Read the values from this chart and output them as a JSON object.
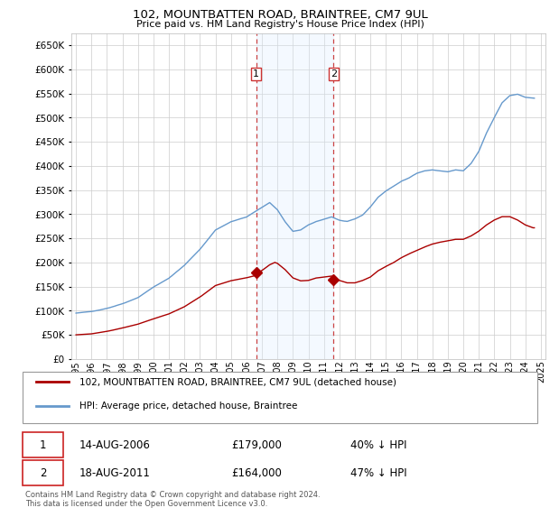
{
  "title": "102, MOUNTBATTEN ROAD, BRAINTREE, CM7 9UL",
  "subtitle": "Price paid vs. HM Land Registry's House Price Index (HPI)",
  "footnote": "Contains HM Land Registry data © Crown copyright and database right 2024.\nThis data is licensed under the Open Government Licence v3.0.",
  "legend_line1": "102, MOUNTBATTEN ROAD, BRAINTREE, CM7 9UL (detached house)",
  "legend_line2": "HPI: Average price, detached house, Braintree",
  "annotation1_date": "14-AUG-2006",
  "annotation1_price": "£179,000",
  "annotation1_pct": "40% ↓ HPI",
  "annotation2_date": "18-AUG-2011",
  "annotation2_price": "£164,000",
  "annotation2_pct": "47% ↓ HPI",
  "red_line_color": "#aa0000",
  "blue_line_color": "#6699cc",
  "shade_color": "#ddeeff",
  "vline_color": "#cc4444",
  "background_color": "#ffffff",
  "grid_color": "#cccccc",
  "ylim": [
    0,
    675000
  ],
  "yticks": [
    0,
    50000,
    100000,
    150000,
    200000,
    250000,
    300000,
    350000,
    400000,
    450000,
    500000,
    550000,
    600000,
    650000
  ],
  "purchase1_year": 2006.62,
  "purchase1_price": 179000,
  "purchase2_year": 2011.62,
  "purchase2_price": 164000,
  "xlim_left": 1994.7,
  "xlim_right": 2025.3
}
